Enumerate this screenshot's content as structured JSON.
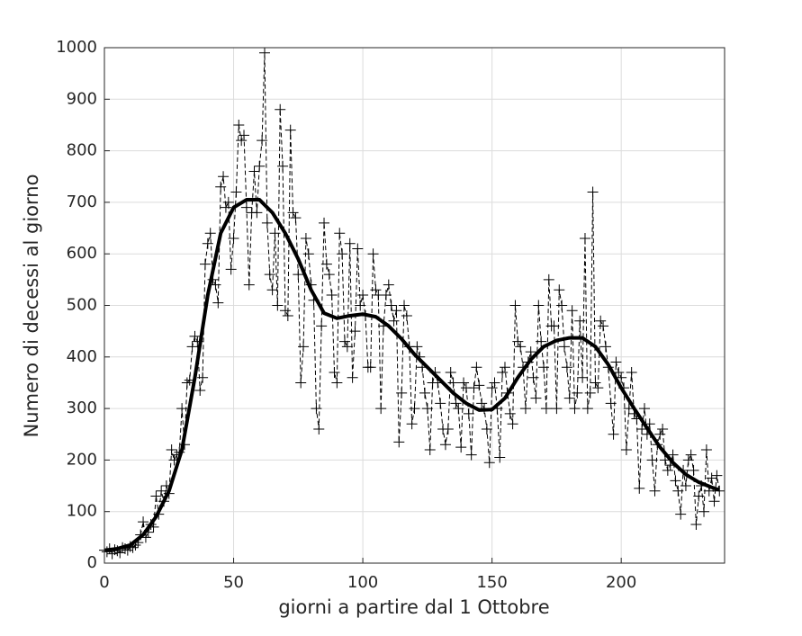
{
  "chart_data": {
    "type": "line",
    "xlabel": "giorni a partire dal 1 Ottobre",
    "ylabel": "Numero di decessi al giorno",
    "xlim": [
      0,
      240
    ],
    "ylim": [
      0,
      1000
    ],
    "xticks": [
      0,
      50,
      100,
      150,
      200
    ],
    "yticks": [
      0,
      100,
      200,
      300,
      400,
      500,
      600,
      700,
      800,
      900,
      1000
    ],
    "grid": true,
    "series": [
      {
        "color": "#000000",
        "style": "dashed-markers",
        "x": [
          0,
          1,
          2,
          3,
          4,
          5,
          6,
          7,
          8,
          9,
          10,
          11,
          12,
          13,
          14,
          15,
          16,
          17,
          18,
          19,
          20,
          21,
          22,
          23,
          24,
          25,
          26,
          27,
          28,
          29,
          30,
          31,
          32,
          33,
          34,
          35,
          36,
          37,
          38,
          39,
          40,
          41,
          42,
          43,
          44,
          45,
          46,
          47,
          48,
          49,
          50,
          51,
          52,
          53,
          54,
          55,
          56,
          57,
          58,
          59,
          60,
          61,
          62,
          63,
          64,
          65,
          66,
          67,
          68,
          69,
          70,
          71,
          72,
          73,
          74,
          75,
          76,
          77,
          78,
          79,
          80,
          81,
          82,
          83,
          84,
          85,
          86,
          87,
          88,
          89,
          90,
          91,
          92,
          93,
          94,
          95,
          96,
          97,
          98,
          99,
          100,
          101,
          102,
          103,
          104,
          105,
          106,
          107,
          108,
          109,
          110,
          111,
          112,
          113,
          114,
          115,
          116,
          117,
          118,
          119,
          120,
          121,
          122,
          123,
          124,
          125,
          126,
          127,
          128,
          129,
          130,
          131,
          132,
          133,
          134,
          135,
          136,
          137,
          138,
          139,
          140,
          141,
          142,
          143,
          144,
          145,
          146,
          147,
          148,
          149,
          150,
          151,
          152,
          153,
          154,
          155,
          156,
          157,
          158,
          159,
          160,
          161,
          162,
          163,
          164,
          165,
          166,
          167,
          168,
          169,
          170,
          171,
          172,
          173,
          174,
          175,
          176,
          177,
          178,
          179,
          180,
          181,
          182,
          183,
          184,
          185,
          186,
          187,
          188,
          189,
          190,
          191,
          192,
          193,
          194,
          195,
          196,
          197,
          198,
          199,
          200,
          201,
          202,
          203,
          204,
          205,
          206,
          207,
          208,
          209,
          210,
          211,
          212,
          213,
          214,
          215,
          216,
          217,
          218,
          219,
          220,
          221,
          222,
          223,
          224,
          225,
          226,
          227,
          228,
          229,
          230,
          231,
          232,
          233,
          234,
          235,
          236,
          237,
          238
        ],
        "values": [
          25,
          22,
          28,
          18,
          26,
          24,
          20,
          30,
          28,
          25,
          32,
          30,
          35,
          40,
          55,
          80,
          50,
          60,
          75,
          70,
          130,
          95,
          140,
          120,
          150,
          135,
          220,
          200,
          210,
          215,
          300,
          230,
          350,
          355,
          420,
          440,
          430,
          335,
          360,
          580,
          620,
          640,
          550,
          540,
          505,
          730,
          750,
          690,
          700,
          570,
          630,
          720,
          850,
          820,
          830,
          690,
          540,
          680,
          760,
          680,
          770,
          820,
          990,
          660,
          560,
          530,
          640,
          500,
          880,
          770,
          490,
          480,
          840,
          680,
          670,
          560,
          350,
          420,
          630,
          600,
          540,
          510,
          300,
          260,
          460,
          660,
          580,
          560,
          520,
          370,
          350,
          640,
          600,
          430,
          420,
          620,
          360,
          450,
          610,
          500,
          520,
          480,
          380,
          380,
          600,
          530,
          520,
          300,
          460,
          520,
          540,
          500,
          470,
          490,
          235,
          330,
          500,
          480,
          420,
          270,
          300,
          420,
          400,
          380,
          330,
          300,
          220,
          350,
          370,
          350,
          310,
          260,
          230,
          260,
          370,
          350,
          310,
          300,
          225,
          350,
          340,
          290,
          210,
          340,
          380,
          345,
          310,
          300,
          260,
          195,
          340,
          350,
          300,
          205,
          370,
          380,
          330,
          290,
          270,
          500,
          430,
          420,
          380,
          300,
          390,
          410,
          360,
          320,
          500,
          430,
          380,
          300,
          550,
          460,
          460,
          300,
          530,
          500,
          420,
          380,
          320,
          490,
          300,
          330,
          470,
          360,
          630,
          300,
          330,
          720,
          350,
          340,
          470,
          460,
          420,
          380,
          310,
          250,
          390,
          370,
          360,
          340,
          220,
          300,
          370,
          290,
          280,
          145,
          260,
          300,
          250,
          270,
          200,
          140,
          230,
          250,
          260,
          200,
          180,
          190,
          210,
          160,
          140,
          95,
          180,
          150,
          200,
          210,
          180,
          75,
          130,
          150,
          100,
          220,
          140,
          165,
          120,
          170,
          140
        ]
      },
      {
        "color": "#000000",
        "style": "solid",
        "x": [
          0,
          5,
          10,
          15,
          20,
          25,
          30,
          35,
          40,
          45,
          50,
          55,
          60,
          65,
          70,
          75,
          80,
          85,
          90,
          95,
          100,
          105,
          110,
          115,
          120,
          125,
          130,
          135,
          140,
          145,
          150,
          155,
          160,
          165,
          170,
          175,
          180,
          185,
          190,
          195,
          200,
          205,
          210,
          215,
          220,
          225,
          230,
          235,
          238
        ],
        "values": [
          25,
          28,
          35,
          55,
          90,
          140,
          220,
          360,
          520,
          640,
          690,
          705,
          705,
          680,
          640,
          590,
          530,
          485,
          475,
          480,
          483,
          478,
          460,
          435,
          405,
          380,
          355,
          330,
          310,
          297,
          298,
          320,
          360,
          395,
          420,
          432,
          437,
          437,
          420,
          385,
          340,
          300,
          262,
          225,
          195,
          172,
          157,
          147,
          142
        ]
      }
    ]
  }
}
